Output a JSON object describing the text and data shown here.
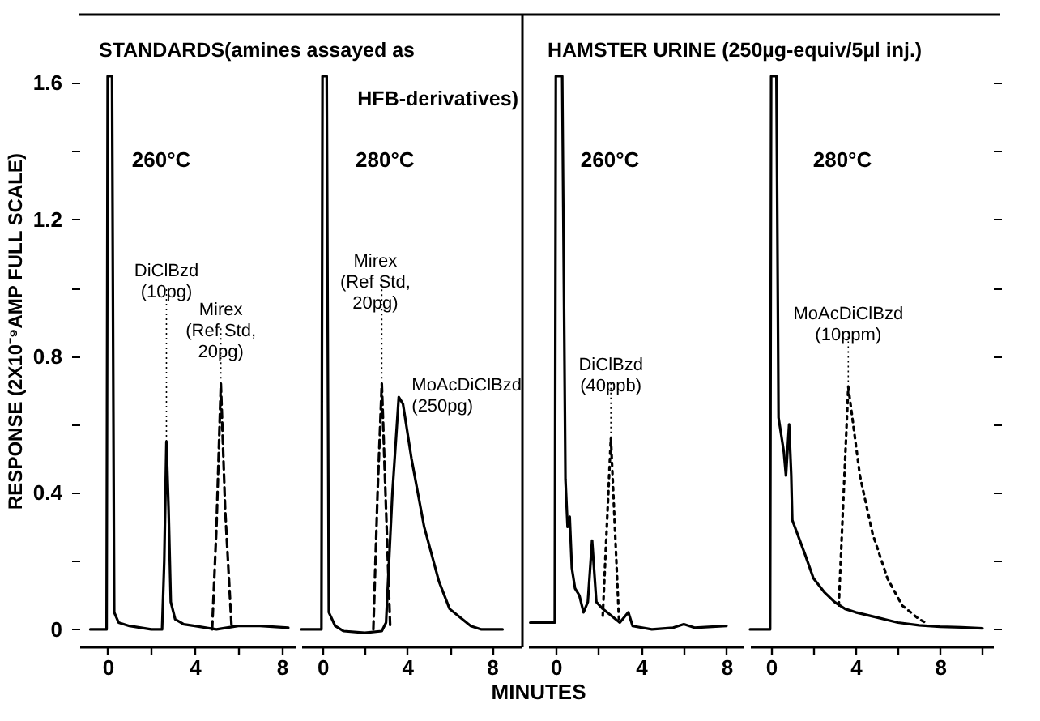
{
  "chart_data": [
    {
      "type": "line",
      "title": "STANDARDS(amines assayed as",
      "subtitle": "260°C",
      "ylabel": "RESPONSE (2X10⁻⁹AMP FULL SCALE)",
      "xlim": [
        -1.3,
        8.6
      ],
      "ylim": [
        -0.05,
        1.8
      ],
      "xticks": [
        0,
        {
          "value": 2,
          "label": null
        },
        4,
        {
          "value": 6,
          "label": null
        },
        8
      ],
      "yticks": [
        0,
        {
          "value": 0.2,
          "label": null
        },
        {
          "value": 0.4,
          "label": "0.4"
        },
        {
          "value": 0.6,
          "label": null
        },
        {
          "value": 0.8,
          "label": "0.8"
        },
        {
          "value": 1.0,
          "label": null
        },
        {
          "value": 1.2,
          "label": "1.2"
        },
        {
          "value": 1.4,
          "label": null
        },
        {
          "value": 1.6,
          "label": "1.6"
        }
      ],
      "grid": false,
      "marker": "none",
      "series": [
        {
          "color": "#000000",
          "line_style": "solid",
          "x": [
            -0.8,
            -0.05,
            0,
            0.2,
            0.3,
            0.5,
            1,
            2,
            2.5,
            2.6,
            2.7,
            2.8,
            2.9,
            3.1,
            3.5,
            4,
            5,
            6,
            7,
            8.3
          ],
          "values": [
            0,
            0,
            1.62,
            1.62,
            0.05,
            0.02,
            0.01,
            0,
            0,
            0.2,
            0.55,
            0.35,
            0.08,
            0.03,
            0.015,
            0.01,
            0,
            0.01,
            0.01,
            0.005
          ]
        },
        {
          "color": "#000000",
          "line_style": "dashed",
          "x": [
            4.8,
            5.0,
            5.2,
            5.4,
            5.7
          ],
          "values": [
            0,
            0.3,
            0.72,
            0.35,
            0
          ]
        }
      ],
      "annotations": [
        {
          "text": "DiClBzd\n(10pg)",
          "x": 2.7,
          "y": 0.55
        },
        {
          "text": "Mirex\n(Ref Std,\n20pg)",
          "x": 5.2,
          "y": 0.72
        }
      ]
    },
    {
      "type": "line",
      "title": "HFB-derivatives)",
      "subtitle": "280°C",
      "xlim": [
        -1,
        9.4
      ],
      "ylim": [
        -0.05,
        1.8
      ],
      "xticks": [
        0,
        {
          "value": 2,
          "label": null
        },
        4,
        {
          "value": 6,
          "label": null
        },
        8
      ],
      "tick_labels": "x",
      "xlabel": "MINUTES",
      "grid": false,
      "marker": "none",
      "series": [
        {
          "color": "#000000",
          "line_style": "solid",
          "x": [
            -1,
            -0.05,
            0,
            0.2,
            0.3,
            0.6,
            1,
            2,
            2.8,
            3.0,
            3.3,
            3.6,
            3.8,
            4.2,
            4.8,
            5.5,
            6,
            7,
            7.5,
            8.5
          ],
          "values": [
            0,
            0,
            1.62,
            1.62,
            0.05,
            0.01,
            -0.005,
            -0.01,
            -0.005,
            0.02,
            0.4,
            0.68,
            0.66,
            0.5,
            0.3,
            0.14,
            0.06,
            0.01,
            0,
            0
          ]
        },
        {
          "color": "#000000",
          "line_style": "dashed",
          "x": [
            2.4,
            2.6,
            2.8,
            3.0,
            3.2
          ],
          "values": [
            0,
            0.4,
            0.72,
            0.35,
            0
          ]
        }
      ],
      "annotations": [
        {
          "text": "Mirex\n(Ref Std,\n20pg)",
          "x": 2.8,
          "y": 0.72
        },
        {
          "text": "MoAcDiClBzd\n(250pg)",
          "x": 3.6,
          "y": 0.68
        }
      ]
    },
    {
      "type": "line",
      "title": "HAMSTER URINE (250µg-equiv/5µl inj.)",
      "subtitle": "260°C",
      "xlim": [
        -1.3,
        8.8
      ],
      "ylim": [
        -0.05,
        1.8
      ],
      "xticks": [
        0,
        {
          "value": 2,
          "label": null
        },
        4,
        {
          "value": 6,
          "label": null
        },
        8
      ],
      "tick_labels": "x",
      "grid": false,
      "marker": "none",
      "series": [
        {
          "color": "#000000",
          "line_style": "solid",
          "x": [
            -1.2,
            -0.05,
            0,
            0.3,
            0.45,
            0.55,
            0.65,
            0.75,
            0.9,
            1.1,
            1.3,
            1.5,
            1.7,
            1.9,
            2.2,
            2.6,
            3.0,
            3.4,
            3.6,
            4.5,
            5.5,
            6,
            6.5,
            8
          ],
          "values": [
            0.02,
            0.02,
            1.62,
            1.62,
            0.44,
            0.3,
            0.33,
            0.18,
            0.12,
            0.1,
            0.05,
            0.08,
            0.26,
            0.08,
            0.06,
            0.04,
            0.02,
            0.05,
            0.01,
            0,
            0.005,
            0.015,
            0.005,
            0.01
          ]
        },
        {
          "color": "#000000",
          "line_style": "dotted",
          "x": [
            2.2,
            2.58,
            2.96
          ],
          "values": [
            0.04,
            0.56,
            0.03
          ]
        }
      ],
      "annotations": [
        {
          "text": "DiClBzd\n(40ppb)",
          "x": 2.58,
          "y": 0.56
        }
      ]
    },
    {
      "type": "line",
      "subtitle": "280°C",
      "xlim": [
        -1,
        10.5
      ],
      "ylim": [
        -0.05,
        1.8
      ],
      "xticks": [
        0,
        {
          "value": 2,
          "label": null
        },
        4,
        {
          "value": 6,
          "label": null
        },
        8,
        {
          "value": 10,
          "label": null
        }
      ],
      "yticks": [
        {
          "value": 0,
          "label": null
        },
        {
          "value": 0.2,
          "label": null
        },
        {
          "value": 0.4,
          "label": null
        },
        {
          "value": 0.6,
          "label": null
        },
        {
          "value": 0.8,
          "label": null
        },
        {
          "value": 1.0,
          "label": null
        },
        {
          "value": 1.2,
          "label": null
        },
        {
          "value": 1.4,
          "label": null
        },
        {
          "value": 1.6,
          "label": null
        }
      ],
      "tick_labels": "x",
      "grid": false,
      "marker": "none",
      "series": [
        {
          "color": "#000000",
          "line_style": "solid",
          "x": [
            -1,
            -0.05,
            0,
            0.25,
            0.35,
            0.6,
            0.7,
            0.85,
            0.95,
            1.0,
            1.3,
            1.6,
            2.0,
            2.5,
            3.0,
            3.5,
            4,
            5,
            6,
            7,
            8,
            9,
            10
          ],
          "values": [
            0,
            0,
            1.62,
            1.62,
            0.62,
            0.52,
            0.45,
            0.6,
            0.45,
            0.32,
            0.27,
            0.22,
            0.15,
            0.11,
            0.08,
            0.06,
            0.05,
            0.035,
            0.02,
            0.012,
            0.008,
            0.006,
            0.003
          ]
        },
        {
          "color": "#000000",
          "line_style": "dotted",
          "x": [
            3.2,
            3.65,
            4.2,
            4.8,
            5.5,
            6.2,
            7,
            7.3
          ],
          "values": [
            0.07,
            0.71,
            0.45,
            0.28,
            0.15,
            0.07,
            0.03,
            0.02
          ]
        }
      ],
      "annotations": [
        {
          "text": "MoAcDiClBzd\n(10ppm)",
          "x": 3.65,
          "y": 0.71
        }
      ]
    }
  ]
}
